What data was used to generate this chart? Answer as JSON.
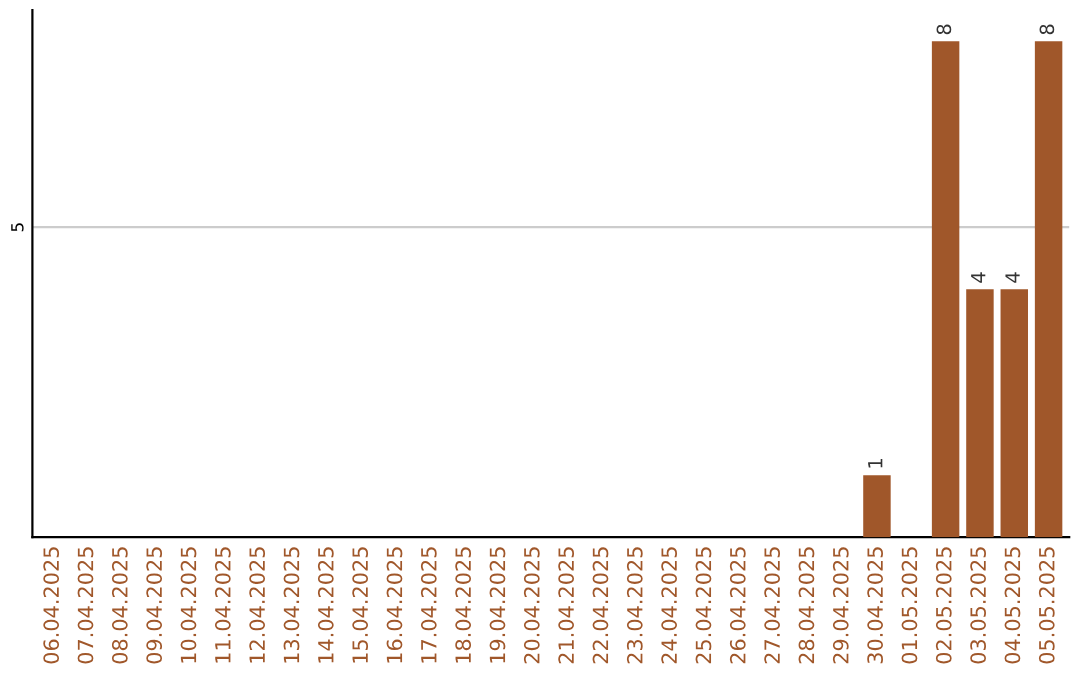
{
  "chart_data": {
    "type": "bar",
    "ylim": [
      0,
      8.5
    ],
    "categories": [
      "06.04.2025",
      "07.04.2025",
      "08.04.2025",
      "09.04.2025",
      "10.04.2025",
      "11.04.2025",
      "12.04.2025",
      "13.04.2025",
      "14.04.2025",
      "15.04.2025",
      "16.04.2025",
      "17.04.2025",
      "18.04.2025",
      "19.04.2025",
      "20.04.2025",
      "21.04.2025",
      "22.04.2025",
      "23.04.2025",
      "24.04.2025",
      "25.04.2025",
      "26.04.2025",
      "27.04.2025",
      "28.04.2025",
      "29.04.2025",
      "30.04.2025",
      "01.05.2025",
      "02.05.2025",
      "03.05.2025",
      "04.05.2025",
      "05.05.2025"
    ],
    "values": [
      null,
      null,
      null,
      null,
      null,
      null,
      null,
      null,
      null,
      null,
      null,
      null,
      null,
      null,
      null,
      null,
      null,
      null,
      null,
      null,
      null,
      null,
      null,
      null,
      1,
      null,
      8,
      4,
      4,
      8
    ],
    "value_labels": [
      null,
      null,
      null,
      null,
      null,
      null,
      null,
      null,
      null,
      null,
      null,
      null,
      null,
      null,
      null,
      null,
      null,
      null,
      null,
      null,
      null,
      null,
      null,
      null,
      "1",
      null,
      "8",
      "4",
      "4",
      "8"
    ],
    "color": "#a0572a",
    "yticks": [
      5
    ],
    "grid": "y"
  }
}
